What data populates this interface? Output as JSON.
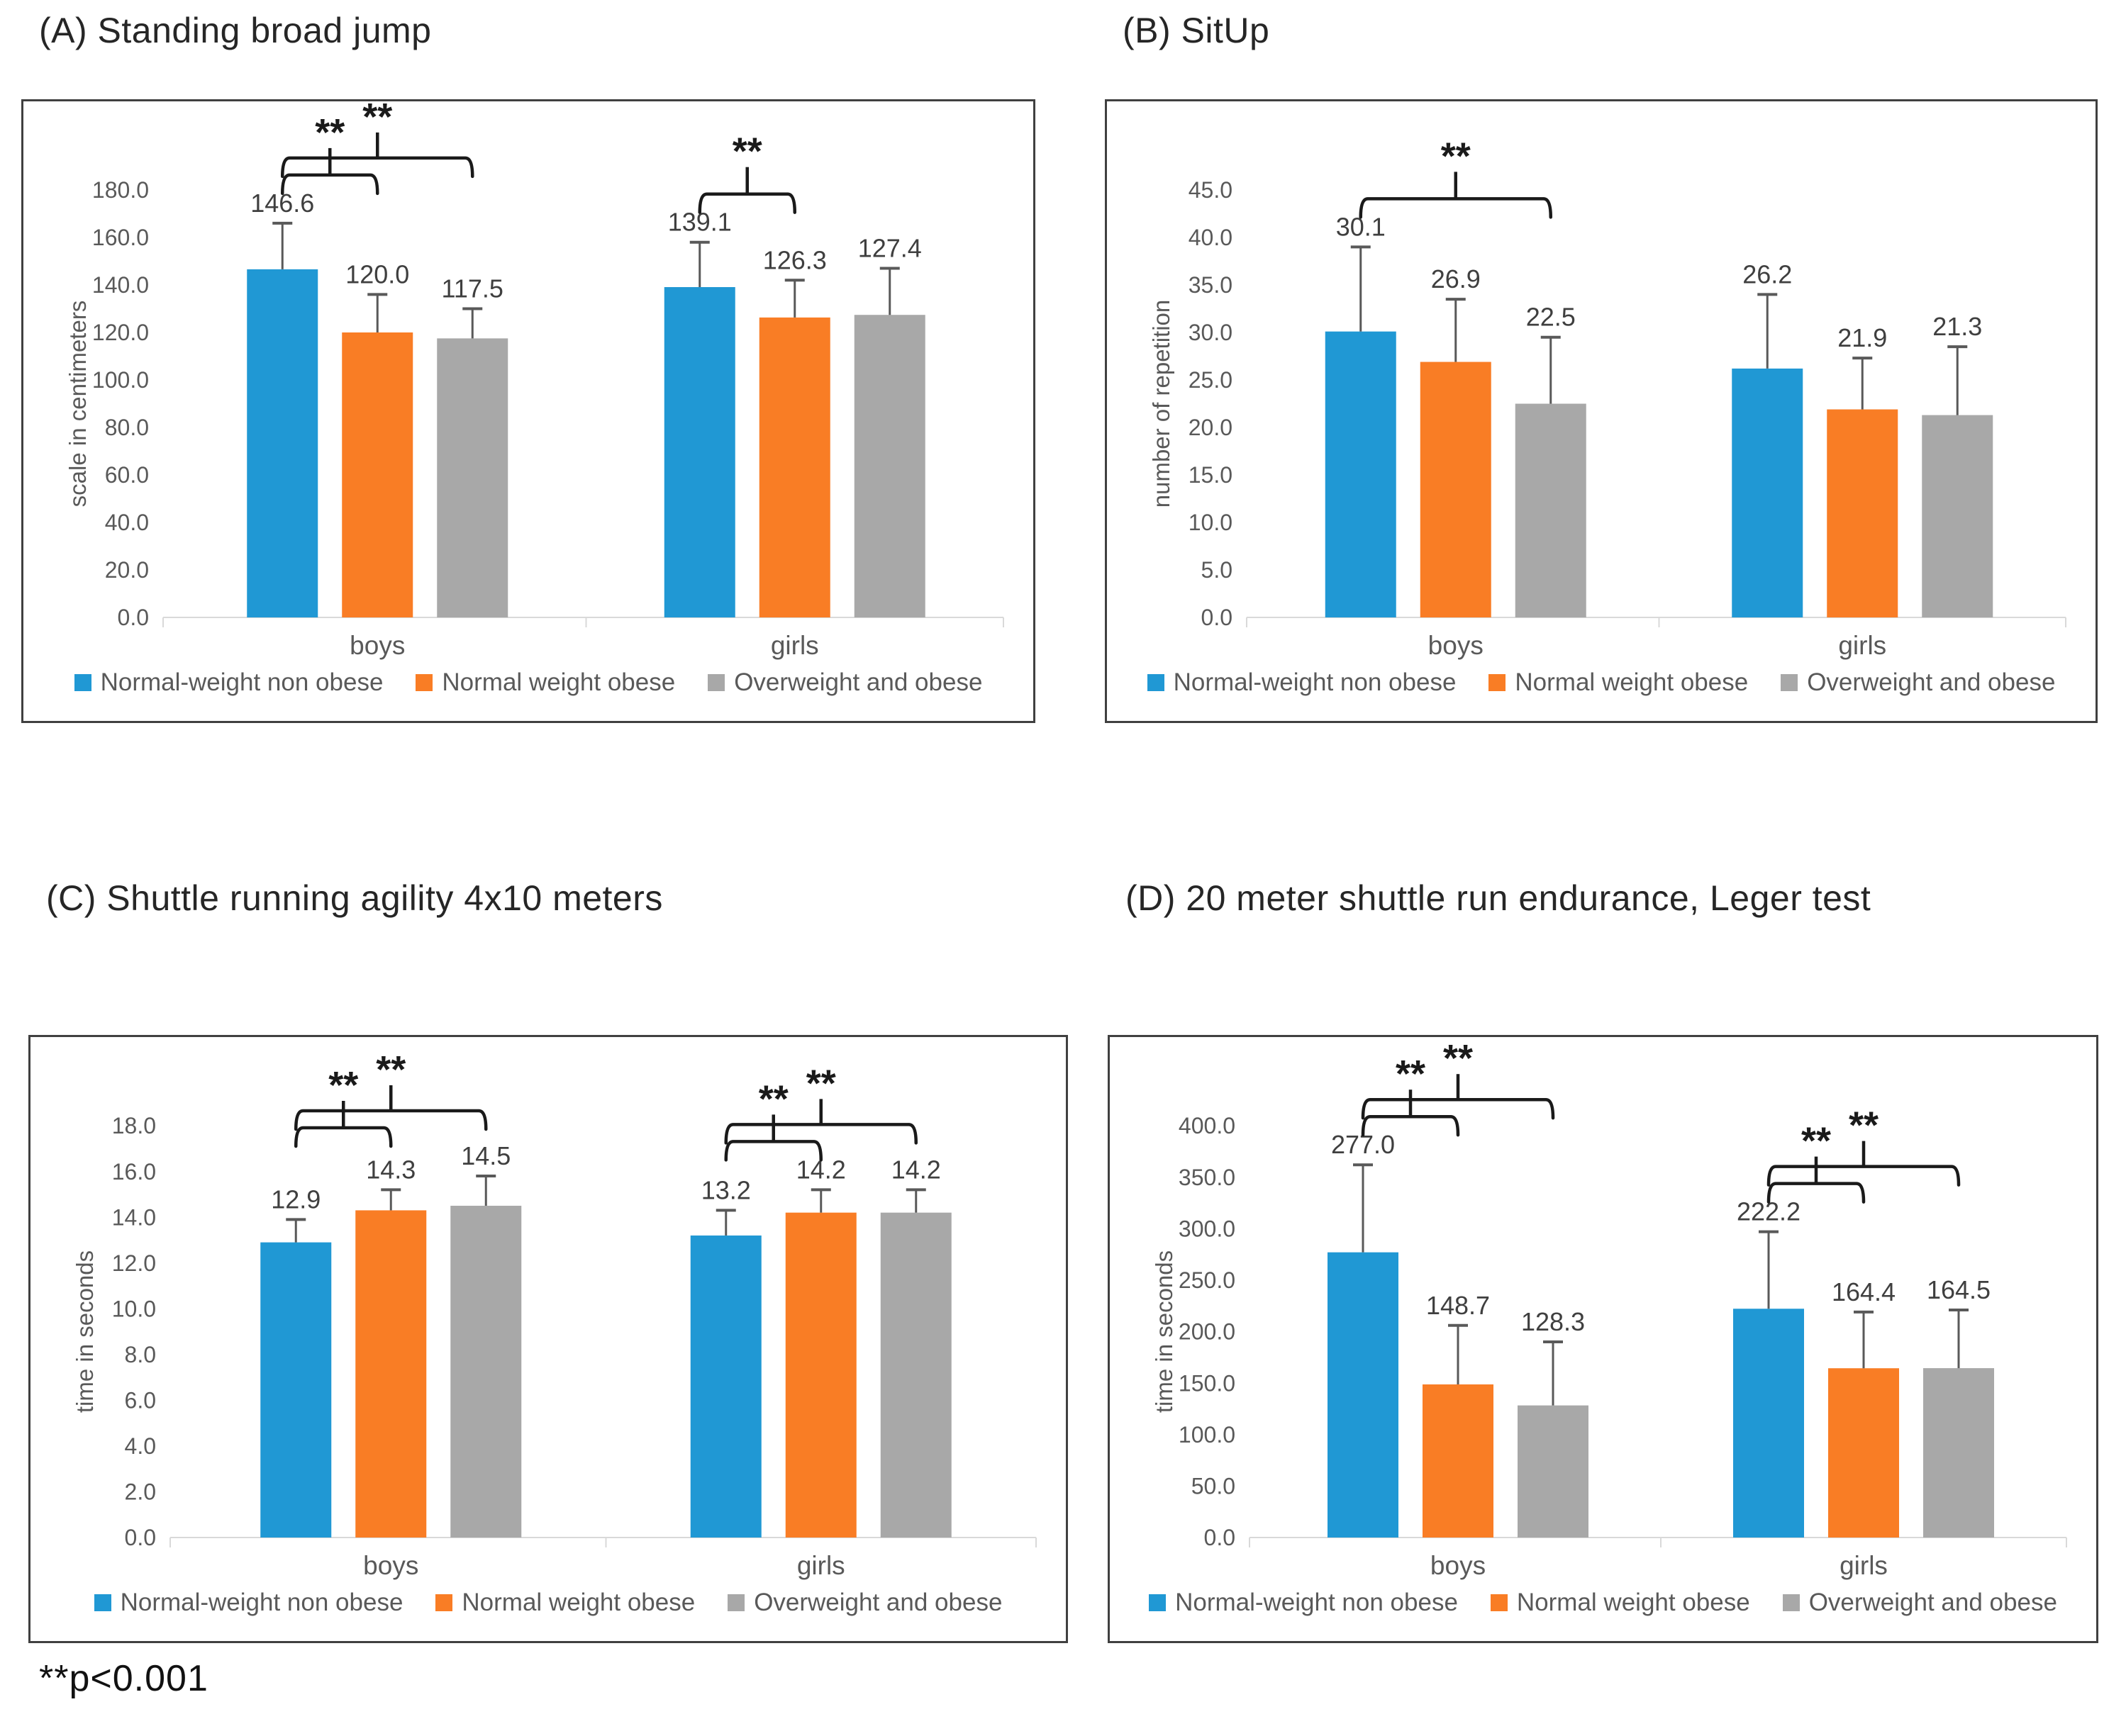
{
  "figure": {
    "footnote": "**p<0.001"
  },
  "legend": {
    "items": [
      {
        "label": "Normal-weight non obese",
        "color": "#2098D4"
      },
      {
        "label": "Normal weight obese",
        "color": "#F97D25"
      },
      {
        "label": "Overweight and obese",
        "color": "#A8A8A8"
      }
    ]
  },
  "style": {
    "axis_text_color": "#595959",
    "value_label_color": "#3f3f3f",
    "bracket_color": "#1a1a1a",
    "baseline_color": "#d9d9d9",
    "error_bar_color": "#595959"
  },
  "chart_data": [
    {
      "id": "A",
      "type": "bar",
      "title": "(A) Standing broad jump",
      "ylabel": "scale in centimeters",
      "ylim": [
        0,
        180
      ],
      "ytick_step": 20,
      "grid": false,
      "legend_position": "bottom",
      "categories": [
        "boys",
        "girls"
      ],
      "series": [
        {
          "name": "Normal-weight non obese",
          "color": "#2098D4",
          "values": [
            146.6,
            139.1
          ],
          "error_top": [
            166,
            158
          ]
        },
        {
          "name": "Normal weight obese",
          "color": "#F97D25",
          "values": [
            120.0,
            126.3
          ],
          "error_top": [
            136,
            142
          ]
        },
        {
          "name": "Overweight and obese",
          "color": "#A8A8A8",
          "values": [
            117.5,
            127.4
          ],
          "error_top": [
            130,
            147
          ]
        }
      ],
      "significance": [
        {
          "category": "boys",
          "from_series": 0,
          "to_series": 1,
          "label": "**"
        },
        {
          "category": "boys",
          "from_series": 0,
          "to_series": 2,
          "label": "**"
        },
        {
          "category": "girls",
          "from_series": 0,
          "to_series": 1,
          "label": "**"
        }
      ]
    },
    {
      "id": "B",
      "type": "bar",
      "title": "(B) SitUp",
      "ylabel": "number of repetition",
      "ylim": [
        0,
        45
      ],
      "ytick_step": 5,
      "grid": false,
      "legend_position": "bottom",
      "categories": [
        "boys",
        "girls"
      ],
      "series": [
        {
          "name": "Normal-weight non obese",
          "color": "#2098D4",
          "values": [
            30.1,
            26.2
          ],
          "error_top": [
            39,
            34
          ]
        },
        {
          "name": "Normal weight obese",
          "color": "#F97D25",
          "values": [
            26.9,
            21.9
          ],
          "error_top": [
            33.5,
            27.3
          ]
        },
        {
          "name": "Overweight and obese",
          "color": "#A8A8A8",
          "values": [
            22.5,
            21.3
          ],
          "error_top": [
            29.5,
            28.5
          ]
        }
      ],
      "significance": [
        {
          "category": "boys",
          "from_series": 0,
          "to_series": 2,
          "label": "**"
        }
      ]
    },
    {
      "id": "C",
      "type": "bar",
      "title": "(C) Shuttle running agility 4x10 meters",
      "ylabel": "time in seconds",
      "ylim": [
        0,
        18
      ],
      "ytick_step": 2,
      "grid": false,
      "legend_position": "bottom",
      "categories": [
        "boys",
        "girls"
      ],
      "series": [
        {
          "name": "Normal-weight non obese",
          "color": "#2098D4",
          "values": [
            12.9,
            13.2
          ],
          "error_top": [
            13.9,
            14.3
          ]
        },
        {
          "name": "Normal weight obese",
          "color": "#F97D25",
          "values": [
            14.3,
            14.2
          ],
          "error_top": [
            15.2,
            15.2
          ]
        },
        {
          "name": "Overweight and obese",
          "color": "#A8A8A8",
          "values": [
            14.5,
            14.2
          ],
          "error_top": [
            15.8,
            15.2
          ]
        }
      ],
      "significance": [
        {
          "category": "boys",
          "from_series": 0,
          "to_series": 1,
          "label": "**"
        },
        {
          "category": "boys",
          "from_series": 0,
          "to_series": 2,
          "label": "**"
        },
        {
          "category": "girls",
          "from_series": 0,
          "to_series": 1,
          "label": "**"
        },
        {
          "category": "girls",
          "from_series": 0,
          "to_series": 2,
          "label": "**"
        }
      ]
    },
    {
      "id": "D",
      "type": "bar",
      "title": "(D) 20 meter shuttle run endurance, Leger test",
      "ylabel": "time in seconds",
      "ylim": [
        0,
        400
      ],
      "ytick_step": 50,
      "grid": false,
      "legend_position": "bottom",
      "categories": [
        "boys",
        "girls"
      ],
      "series": [
        {
          "name": "Normal-weight non obese",
          "color": "#2098D4",
          "values": [
            277.0,
            222.2
          ],
          "error_top": [
            362,
            297
          ]
        },
        {
          "name": "Normal weight obese",
          "color": "#F97D25",
          "values": [
            148.7,
            164.4
          ],
          "error_top": [
            206,
            219
          ]
        },
        {
          "name": "Overweight and obese",
          "color": "#A8A8A8",
          "values": [
            128.3,
            164.5
          ],
          "error_top": [
            190,
            221
          ]
        }
      ],
      "significance": [
        {
          "category": "boys",
          "from_series": 0,
          "to_series": 1,
          "label": "**"
        },
        {
          "category": "boys",
          "from_series": 0,
          "to_series": 2,
          "label": "**"
        },
        {
          "category": "girls",
          "from_series": 0,
          "to_series": 1,
          "label": "**"
        },
        {
          "category": "girls",
          "from_series": 0,
          "to_series": 2,
          "label": "**"
        }
      ]
    }
  ]
}
